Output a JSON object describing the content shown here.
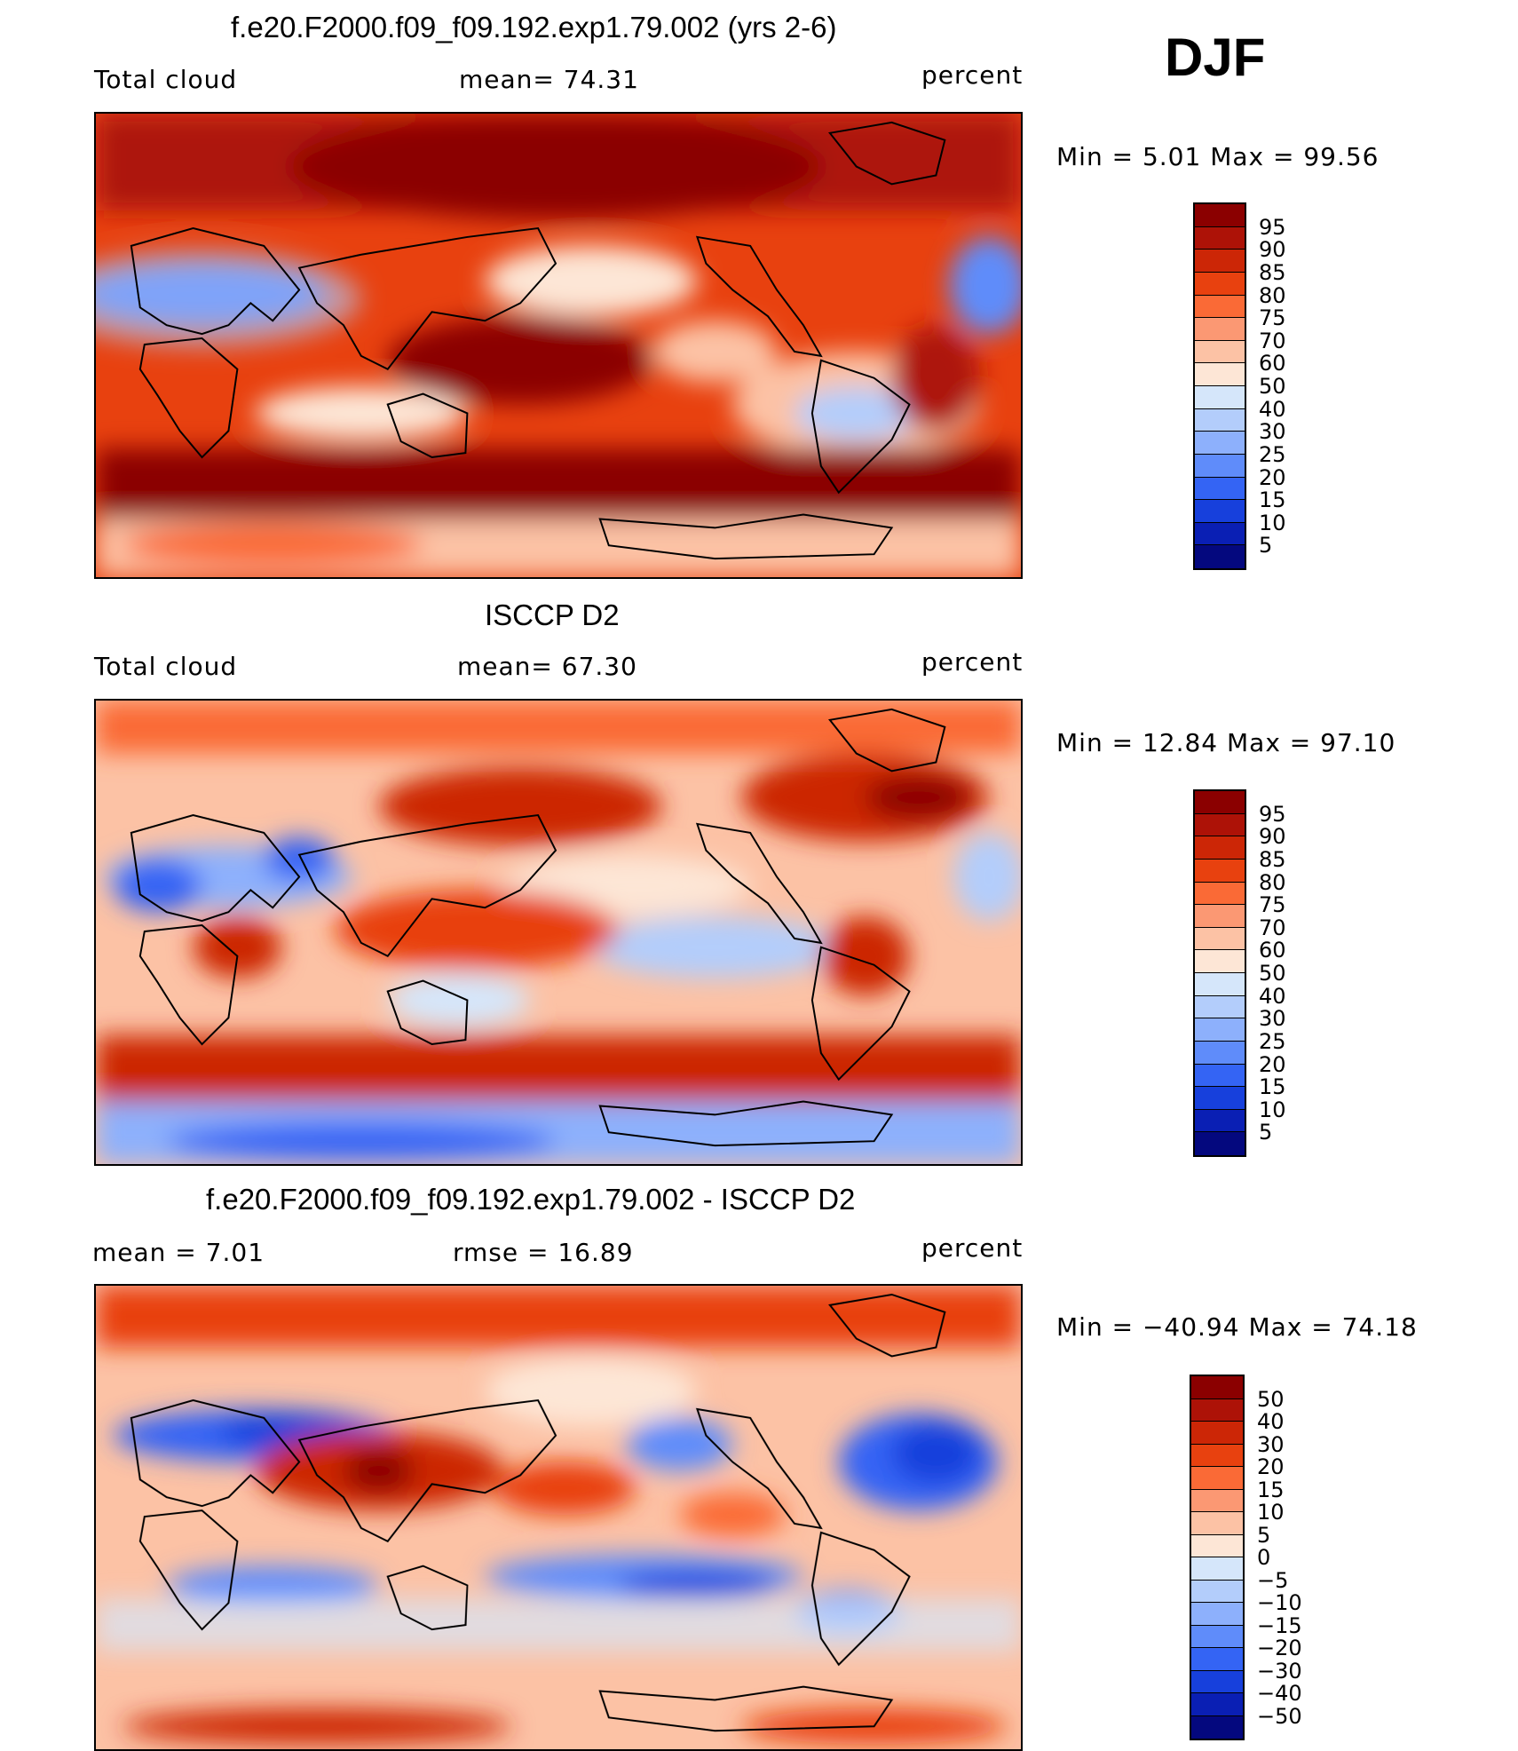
{
  "season": "DJF",
  "panels": [
    {
      "title": "f.e20.F2000.f09_f09.192.exp1.79.002 (yrs 2-6)",
      "left_label": "Total cloud",
      "center_label": "mean=   74.31",
      "right_label": "percent",
      "minmax": "Min  =     5.01  Max  =    99.56",
      "colorbar": {
        "labels": [
          "95",
          "90",
          "85",
          "80",
          "75",
          "70",
          "60",
          "50",
          "40",
          "30",
          "25",
          "20",
          "15",
          "10",
          "5"
        ],
        "colors": [
          "#8b0000",
          "#ad1207",
          "#cc2606",
          "#e8410f",
          "#fa6a36",
          "#fb9873",
          "#fcc2a5",
          "#fde6d6",
          "#d5e6fa",
          "#b3cdfb",
          "#8db0fc",
          "#5f8cfa",
          "#3464f4",
          "#1740dc",
          "#0a1fb4",
          "#04087e"
        ]
      }
    },
    {
      "title": "ISCCP D2",
      "left_label": "Total cloud",
      "center_label": "mean=   67.30",
      "right_label": "percent",
      "minmax": "Min  =    12.84  Max  =    97.10",
      "colorbar": {
        "labels": [
          "95",
          "90",
          "85",
          "80",
          "75",
          "70",
          "60",
          "50",
          "40",
          "30",
          "25",
          "20",
          "15",
          "10",
          "5"
        ],
        "colors": [
          "#8b0000",
          "#ad1207",
          "#cc2606",
          "#e8410f",
          "#fa6a36",
          "#fb9873",
          "#fcc2a5",
          "#fde6d6",
          "#d5e6fa",
          "#b3cdfb",
          "#8db0fc",
          "#5f8cfa",
          "#3464f4",
          "#1740dc",
          "#0a1fb4",
          "#04087e"
        ]
      }
    },
    {
      "title": "f.e20.F2000.f09_f09.192.exp1.79.002 - ISCCP D2",
      "left_label": "mean  =     7.01",
      "center_label": "rmse  =    16.89",
      "right_label": "percent",
      "minmax": "Min  = −40.94  Max  =    74.18",
      "colorbar": {
        "labels": [
          "50",
          "40",
          "30",
          "20",
          "15",
          "10",
          "5",
          "0",
          "−5",
          "−10",
          "−15",
          "−20",
          "−30",
          "−40",
          "−50"
        ],
        "colors": [
          "#8b0000",
          "#ad1207",
          "#cc2606",
          "#e8410f",
          "#fa6a36",
          "#fb9873",
          "#fcc2a5",
          "#fde6d6",
          "#d5e6fa",
          "#b3cdfb",
          "#8db0fc",
          "#5f8cfa",
          "#3464f4",
          "#1740dc",
          "#0a1fb4",
          "#04087e"
        ]
      }
    }
  ]
}
